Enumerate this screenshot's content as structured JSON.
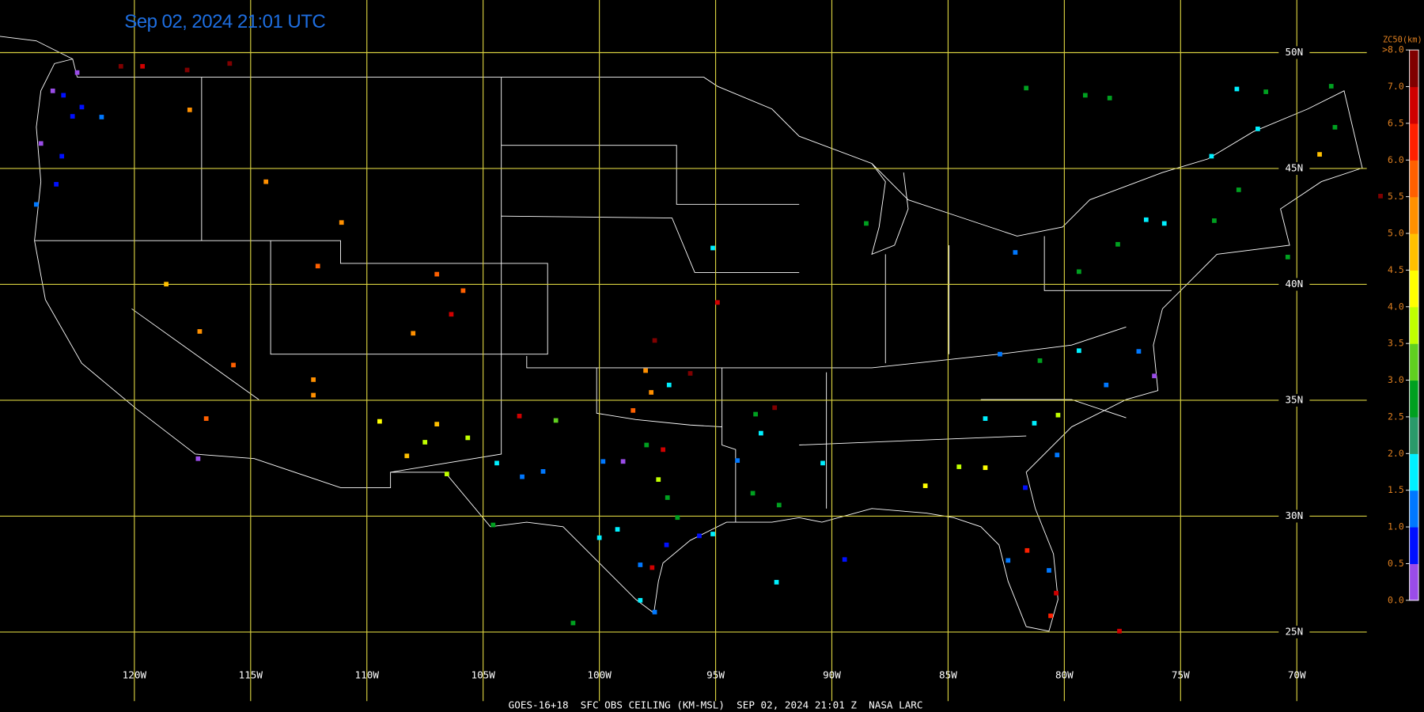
{
  "title": "Sep 02, 2024 21:01 UTC",
  "footer": "GOES-16+18  SFC OBS CEILING (KM-MSL)  SEP 02, 2024 21:01 Z  NASA LARC",
  "extent": {
    "lon": [
      -125.78,
      -64.53
    ],
    "lat": [
      52.27,
      21.55
    ]
  },
  "grid": {
    "color": "#d8d040",
    "lons": [
      {
        "value": -120,
        "label": "120W"
      },
      {
        "value": -115,
        "label": "115W"
      },
      {
        "value": -110,
        "label": "110W"
      },
      {
        "value": -105,
        "label": "105W"
      },
      {
        "value": -100,
        "label": "100W"
      },
      {
        "value": -95,
        "label": "95W"
      },
      {
        "value": -90,
        "label": "90W"
      },
      {
        "value": -85,
        "label": "85W"
      },
      {
        "value": -80,
        "label": "80W"
      },
      {
        "value": -75,
        "label": "75W"
      },
      {
        "value": -70,
        "label": "70W"
      }
    ],
    "lats": [
      {
        "value": 50,
        "label": "50N"
      },
      {
        "value": 45,
        "label": "45N"
      },
      {
        "value": 40,
        "label": "40N"
      },
      {
        "value": 35,
        "label": "35N"
      },
      {
        "value": 30,
        "label": "30N"
      },
      {
        "value": 25,
        "label": "25N"
      }
    ]
  },
  "colorbar": {
    "title": "ZC50(km)",
    "ticks": [
      {
        "value": 0,
        "label": "0.0"
      },
      {
        "value": 0.5,
        "label": "0.5"
      },
      {
        "value": 1,
        "label": "1.0"
      },
      {
        "value": 1.5,
        "label": "1.5"
      },
      {
        "value": 2,
        "label": "2.0"
      },
      {
        "value": 2.5,
        "label": "2.5"
      },
      {
        "value": 3,
        "label": "3.0"
      },
      {
        "value": 3.5,
        "label": "3.5"
      },
      {
        "value": 4,
        "label": "4.0"
      },
      {
        "value": 4.5,
        "label": "4.5"
      },
      {
        "value": 5,
        "label": "5.0"
      },
      {
        "value": 5.5,
        "label": "5.5"
      },
      {
        "value": 6,
        "label": "6.0"
      },
      {
        "value": 6.5,
        "label": "6.5"
      },
      {
        "value": 7,
        "label": "7.0"
      },
      {
        "value": 8,
        "label": ">8.0"
      }
    ],
    "colors": [
      "#9a4ce8",
      "#0010ff",
      "#0078ff",
      "#00f0ff",
      "#2a9a6a",
      "#00a020",
      "#60d020",
      "#c0ff00",
      "#ffff00",
      "#ffc000",
      "#ff9000",
      "#ff6000",
      "#ff2000",
      "#d00000",
      "#800000"
    ]
  },
  "observations": [
    {
      "lon": -121.41,
      "lat": 47.22,
      "value": 1.2
    },
    {
      "lon": -117.62,
      "lat": 47.53,
      "value": 5.2
    },
    {
      "lon": -114.34,
      "lat": 44.43,
      "value": 5.3
    },
    {
      "lon": -111.09,
      "lat": 42.67,
      "value": 5.4
    },
    {
      "lon": -112.11,
      "lat": 40.79,
      "value": 5.8
    },
    {
      "lon": -118.63,
      "lat": 40.01,
      "value": 4.6
    },
    {
      "lon": -117.19,
      "lat": 37.97,
      "value": 5.4
    },
    {
      "lon": -115.74,
      "lat": 36.52,
      "value": 5.6
    },
    {
      "lon": -112.3,
      "lat": 35.89,
      "value": 5.3
    },
    {
      "lon": -112.3,
      "lat": 35.22,
      "value": 5.4
    },
    {
      "lon": -116.91,
      "lat": 34.21,
      "value": 5.5
    },
    {
      "lon": -106.99,
      "lat": 40.44,
      "value": 5.6
    },
    {
      "lon": -105.86,
      "lat": 39.73,
      "value": 5.5
    },
    {
      "lon": -106.37,
      "lat": 38.71,
      "value": 6.6
    },
    {
      "lon": -108.01,
      "lat": 37.89,
      "value": 5.0
    },
    {
      "lon": -109.45,
      "lat": 34.09,
      "value": 4.3
    },
    {
      "lon": -106.99,
      "lat": 33.97,
      "value": 4.8
    },
    {
      "lon": -105.66,
      "lat": 33.38,
      "value": 3.8
    },
    {
      "lon": -108.28,
      "lat": 32.6,
      "value": 4.8
    },
    {
      "lon": -107.5,
      "lat": 33.19,
      "value": 3.7
    },
    {
      "lon": -104.41,
      "lat": 32.29,
      "value": 1.8
    },
    {
      "lon": -103.32,
      "lat": 31.7,
      "value": 1.2
    },
    {
      "lon": -102.42,
      "lat": 31.93,
      "value": 1.2
    },
    {
      "lon": -101.87,
      "lat": 34.13,
      "value": 3.2
    },
    {
      "lon": -103.44,
      "lat": 34.32,
      "value": 6.6
    },
    {
      "lon": -98.01,
      "lat": 36.28,
      "value": 5.2
    },
    {
      "lon": -97.0,
      "lat": 35.66,
      "value": 1.8
    },
    {
      "lon": -97.77,
      "lat": 35.34,
      "value": 5.4
    },
    {
      "lon": -97.62,
      "lat": 37.58,
      "value": 7.5
    },
    {
      "lon": -96.09,
      "lat": 36.16,
      "value": 7.4
    },
    {
      "lon": -98.55,
      "lat": 34.56,
      "value": 5.6
    },
    {
      "lon": -99.84,
      "lat": 32.36,
      "value": 1.3
    },
    {
      "lon": -98.98,
      "lat": 32.36,
      "value": 0.3
    },
    {
      "lon": -97.97,
      "lat": 33.07,
      "value": 2.8
    },
    {
      "lon": -97.26,
      "lat": 32.87,
      "value": 6.6
    },
    {
      "lon": -97.46,
      "lat": 31.58,
      "value": 3.8
    },
    {
      "lon": -97.07,
      "lat": 30.8,
      "value": 2.7
    },
    {
      "lon": -96.64,
      "lat": 29.94,
      "value": 2.6
    },
    {
      "lon": -99.22,
      "lat": 29.43,
      "value": 1.8
    },
    {
      "lon": -100.0,
      "lat": 29.07,
      "value": 1.7
    },
    {
      "lon": -97.11,
      "lat": 28.76,
      "value": 0.8
    },
    {
      "lon": -95.7,
      "lat": 29.15,
      "value": 0.9
    },
    {
      "lon": -97.73,
      "lat": 27.78,
      "value": 6.6
    },
    {
      "lon": -98.24,
      "lat": 27.9,
      "value": 1.2
    },
    {
      "lon": -98.24,
      "lat": 26.37,
      "value": 1.8
    },
    {
      "lon": -97.62,
      "lat": 25.86,
      "value": 1.2
    },
    {
      "lon": -101.13,
      "lat": 25.39,
      "value": 2.7
    },
    {
      "lon": -95.12,
      "lat": 41.57,
      "value": 1.8
    },
    {
      "lon": -94.92,
      "lat": 39.22,
      "value": 6.6
    },
    {
      "lon": -93.28,
      "lat": 34.4,
      "value": 2.6
    },
    {
      "lon": -92.46,
      "lat": 34.68,
      "value": 7.4
    },
    {
      "lon": -93.05,
      "lat": 33.58,
      "value": 1.8
    },
    {
      "lon": -94.06,
      "lat": 32.4,
      "value": 1.3
    },
    {
      "lon": -93.4,
      "lat": 30.99,
      "value": 2.7
    },
    {
      "lon": -92.27,
      "lat": 30.48,
      "value": 2.6
    },
    {
      "lon": -90.39,
      "lat": 32.29,
      "value": 1.8
    },
    {
      "lon": -89.45,
      "lat": 28.13,
      "value": 0.9
    },
    {
      "lon": -92.38,
      "lat": 27.15,
      "value": 1.8
    },
    {
      "lon": -88.52,
      "lat": 42.63,
      "value": 2.6
    },
    {
      "lon": -82.11,
      "lat": 41.38,
      "value": 1.3
    },
    {
      "lon": -81.64,
      "lat": 48.47,
      "value": 2.6
    },
    {
      "lon": -79.1,
      "lat": 48.16,
      "value": 2.9
    },
    {
      "lon": -78.05,
      "lat": 48.04,
      "value": 2.6
    },
    {
      "lon": -72.58,
      "lat": 48.43,
      "value": 1.8
    },
    {
      "lon": -71.33,
      "lat": 48.31,
      "value": 2.6
    },
    {
      "lon": -71.68,
      "lat": 46.71,
      "value": 1.8
    },
    {
      "lon": -73.67,
      "lat": 45.53,
      "value": 1.9
    },
    {
      "lon": -72.5,
      "lat": 44.08,
      "value": 2.5
    },
    {
      "lon": -76.48,
      "lat": 42.79,
      "value": 1.8
    },
    {
      "lon": -75.7,
      "lat": 42.63,
      "value": 1.8
    },
    {
      "lon": -77.7,
      "lat": 41.73,
      "value": 2.6
    },
    {
      "lon": -79.37,
      "lat": 40.55,
      "value": 2.6
    },
    {
      "lon": -81.05,
      "lat": 36.71,
      "value": 2.8
    },
    {
      "lon": -79.37,
      "lat": 37.14,
      "value": 1.8
    },
    {
      "lon": -82.77,
      "lat": 36.99,
      "value": 1.3
    },
    {
      "lon": -78.2,
      "lat": 35.66,
      "value": 1.2
    },
    {
      "lon": -76.8,
      "lat": 37.11,
      "value": 1.2
    },
    {
      "lon": -76.13,
      "lat": 36.05,
      "value": 0.3
    },
    {
      "lon": -80.27,
      "lat": 34.36,
      "value": 3.7
    },
    {
      "lon": -81.29,
      "lat": 34.01,
      "value": 1.8
    },
    {
      "lon": -83.4,
      "lat": 34.21,
      "value": 1.8
    },
    {
      "lon": -83.4,
      "lat": 32.09,
      "value": 4.3
    },
    {
      "lon": -84.53,
      "lat": 32.13,
      "value": 3.8
    },
    {
      "lon": -81.68,
      "lat": 31.23,
      "value": 0.8
    },
    {
      "lon": -85.98,
      "lat": 31.31,
      "value": 4.4
    },
    {
      "lon": -80.31,
      "lat": 32.64,
      "value": 1.2
    },
    {
      "lon": -81.6,
      "lat": 28.52,
      "value": 6.4
    },
    {
      "lon": -82.42,
      "lat": 28.09,
      "value": 1.3
    },
    {
      "lon": -80.66,
      "lat": 27.66,
      "value": 1.3
    },
    {
      "lon": -80.35,
      "lat": 26.68,
      "value": 6.5
    },
    {
      "lon": -80.59,
      "lat": 25.7,
      "value": 6.4
    },
    {
      "lon": -77.63,
      "lat": 25.04,
      "value": 6.8
    },
    {
      "lon": -68.52,
      "lat": 48.55,
      "value": 2.6
    },
    {
      "lon": -68.36,
      "lat": 46.78,
      "value": 2.7
    },
    {
      "lon": -69.02,
      "lat": 45.61,
      "value": 4.8
    },
    {
      "lon": -66.4,
      "lat": 43.81,
      "value": 7.3
    },
    {
      "lon": -70.39,
      "lat": 41.18,
      "value": 2.6
    },
    {
      "lon": -73.55,
      "lat": 42.75,
      "value": 2.8
    },
    {
      "lon": -123.05,
      "lat": 48.16,
      "value": 0.9
    },
    {
      "lon": -122.66,
      "lat": 47.25,
      "value": 0.8
    },
    {
      "lon": -124.02,
      "lat": 46.08,
      "value": 0.3
    },
    {
      "lon": -123.12,
      "lat": 45.53,
      "value": 0.9
    },
    {
      "lon": -123.36,
      "lat": 44.32,
      "value": 0.8
    },
    {
      "lon": -124.22,
      "lat": 43.45,
      "value": 1.2
    },
    {
      "lon": -122.46,
      "lat": 49.14,
      "value": 0.4
    },
    {
      "lon": -123.51,
      "lat": 48.35,
      "value": 0.4
    },
    {
      "lon": -122.26,
      "lat": 47.65,
      "value": 0.9
    },
    {
      "lon": -120.58,
      "lat": 49.41,
      "value": 7.4
    },
    {
      "lon": -119.65,
      "lat": 49.41,
      "value": 6.6
    },
    {
      "lon": -115.9,
      "lat": 49.53,
      "value": 7.3
    },
    {
      "lon": -117.73,
      "lat": 49.25,
      "value": 7.5
    },
    {
      "lon": -117.26,
      "lat": 32.48,
      "value": 0.3
    },
    {
      "lon": -106.56,
      "lat": 31.82,
      "value": 3.8
    },
    {
      "lon": -104.57,
      "lat": 29.62,
      "value": 2.6
    },
    {
      "lon": -95.12,
      "lat": 29.23,
      "value": 1.8
    }
  ]
}
